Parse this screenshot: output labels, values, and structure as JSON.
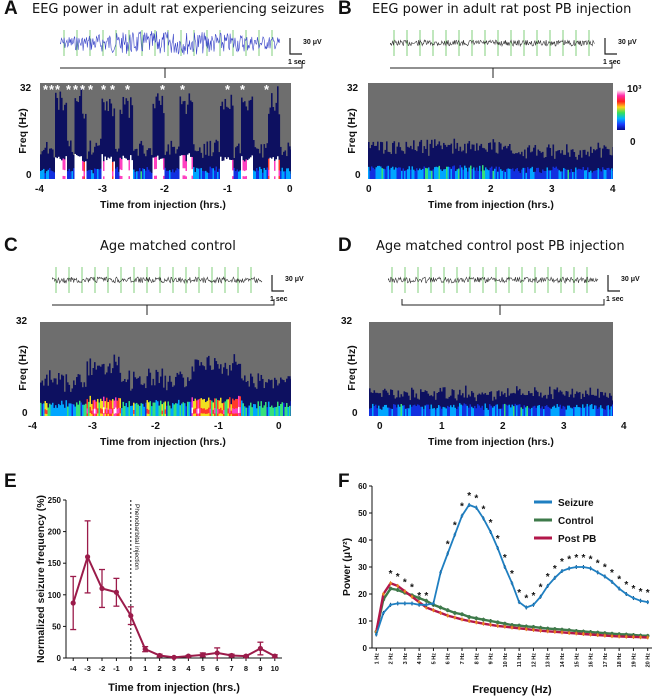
{
  "panels": {
    "A": {
      "label": "A",
      "title": "EEG power in adult rat experiencing seizures",
      "y_max": "32",
      "y_min": "0",
      "ylabel": "Freq (Hz)",
      "xlabel": "Time from injection (hrs.)",
      "ticks": [
        "-4",
        "-3",
        "-2",
        "-1",
        "0"
      ],
      "scale_v": "30 μV",
      "scale_t": "1 sec"
    },
    "B": {
      "label": "B",
      "title": "EEG power in adult rat post PB injection",
      "y_max": "32",
      "y_min": "0",
      "ylabel": "Freq (Hz)",
      "xlabel": "Time from injection (hrs.)",
      "ticks": [
        "0",
        "1",
        "2",
        "3",
        "4"
      ],
      "scale_v": "30 μV",
      "scale_t": "1 sec",
      "cbar_top": "10³",
      "cbar_bottom": "0"
    },
    "C": {
      "label": "C",
      "title": "Age matched control",
      "y_max": "32",
      "y_min": "0",
      "ylabel": "Freq (Hz)",
      "xlabel": "Time from injection (hrs.)",
      "ticks": [
        "-4",
        "-3",
        "-2",
        "-1",
        "0"
      ],
      "scale_v": "30 μV",
      "scale_t": "1 sec"
    },
    "D": {
      "label": "D",
      "title": "Age matched control post PB injection",
      "y_max": "32",
      "y_min": "0",
      "ylabel": "Freq (Hz)",
      "xlabel": "Time from injection (hrs.)",
      "ticks": [
        "0",
        "1",
        "2",
        "3",
        "4"
      ],
      "scale_v": "30 μV",
      "scale_t": "1 sec"
    },
    "E": {
      "label": "E"
    },
    "F": {
      "label": "F"
    }
  },
  "chart_data": [
    {
      "panel": "E",
      "type": "line",
      "x": [
        -4,
        -3,
        -2,
        -1,
        0,
        1,
        2,
        3,
        4,
        5,
        6,
        7,
        8,
        9,
        10
      ],
      "series": [
        {
          "name": "Normalized seizure frequency",
          "values": [
            87,
            160,
            110,
            104,
            67,
            14,
            4,
            1,
            3,
            5,
            8,
            4,
            3,
            15,
            3
          ],
          "errors": [
            42,
            57,
            30,
            22,
            14,
            4,
            2,
            1,
            1,
            3,
            8,
            2,
            1,
            10,
            2
          ],
          "color": "#9b1b4a"
        }
      ],
      "title": "",
      "xlabel": "Time from injection (hrs.)",
      "ylabel": "Normalized seizure frequency (%)",
      "ylim": [
        0,
        250
      ],
      "yticks": [
        0,
        50,
        100,
        150,
        200,
        250
      ],
      "xticks": [
        "-4",
        "-3",
        "-2",
        "-1",
        "0",
        "1",
        "2",
        "3",
        "4",
        "5",
        "6",
        "7",
        "8",
        "9",
        "10"
      ],
      "annotation": "Phenobarbital injection"
    },
    {
      "panel": "F",
      "type": "line",
      "x": [
        1,
        1.5,
        2,
        2.5,
        3,
        3.5,
        4,
        4.5,
        5,
        5.5,
        6,
        6.5,
        7,
        7.5,
        8,
        8.5,
        9,
        9.5,
        10,
        10.5,
        11,
        11.5,
        12,
        12.5,
        13,
        13.5,
        14,
        14.5,
        15,
        15.5,
        16,
        16.5,
        17,
        17.5,
        18,
        18.5,
        19,
        19.5,
        20
      ],
      "categories": [
        "1 Hz",
        "2 Hz",
        "3 Hz",
        "4 Hz",
        "5 Hz",
        "6 Hz",
        "7 Hz",
        "8 Hz",
        "9 Hz",
        "10 Hz",
        "11 Hz",
        "12 Hz",
        "13 Hz",
        "14 Hz",
        "15 Hz",
        "16 Hz",
        "17 Hz",
        "18 Hz",
        "19 Hz",
        "20 Hz"
      ],
      "series": [
        {
          "name": "Seizure",
          "color": "#1f7fc1",
          "values": [
            5,
            13,
            16,
            16.5,
            16.5,
            16.5,
            16,
            16,
            16.5,
            28,
            35,
            42,
            49,
            53,
            52,
            48,
            43,
            37,
            30,
            24,
            17,
            15,
            16,
            19,
            23,
            26,
            28.5,
            29.5,
            30,
            30,
            29.5,
            28,
            26.5,
            24.5,
            22,
            20,
            18.5,
            17.5,
            17
          ]
        },
        {
          "name": "Control",
          "color": "#3e7a4a",
          "values": [
            6,
            18,
            22,
            21.5,
            20.5,
            19.5,
            18.5,
            17.5,
            16,
            15,
            14,
            13,
            12.5,
            11.5,
            11,
            10.5,
            10,
            9.5,
            9,
            8.5,
            8.3,
            8,
            7.8,
            7.5,
            7.2,
            7,
            6.8,
            6.6,
            6.3,
            6.1,
            5.9,
            5.7,
            5.5,
            5.3,
            5.1,
            5,
            4.8,
            4.6,
            4.5
          ]
        },
        {
          "name": "Post PB",
          "color": "#b3174a",
          "values": [
            6,
            20,
            24,
            23,
            21,
            19,
            17,
            15,
            14,
            13,
            12,
            11.3,
            10.6,
            10,
            9.5,
            9,
            8.6,
            8.2,
            7.9,
            7.6,
            7.3,
            7,
            6.7,
            6.4,
            6.2,
            6,
            5.8,
            5.6,
            5.4,
            5.2,
            5,
            4.8,
            4.6,
            4.4,
            4.3,
            4.2,
            4.1,
            4,
            3.9
          ]
        }
      ],
      "title": "",
      "xlabel": "Frequency (Hz)",
      "ylabel": "Power (μV²)",
      "ylim": [
        0,
        60
      ],
      "yticks": [
        0,
        10,
        20,
        30,
        40,
        50,
        60
      ],
      "legend": "top-right",
      "significance_symbol": "*"
    }
  ]
}
